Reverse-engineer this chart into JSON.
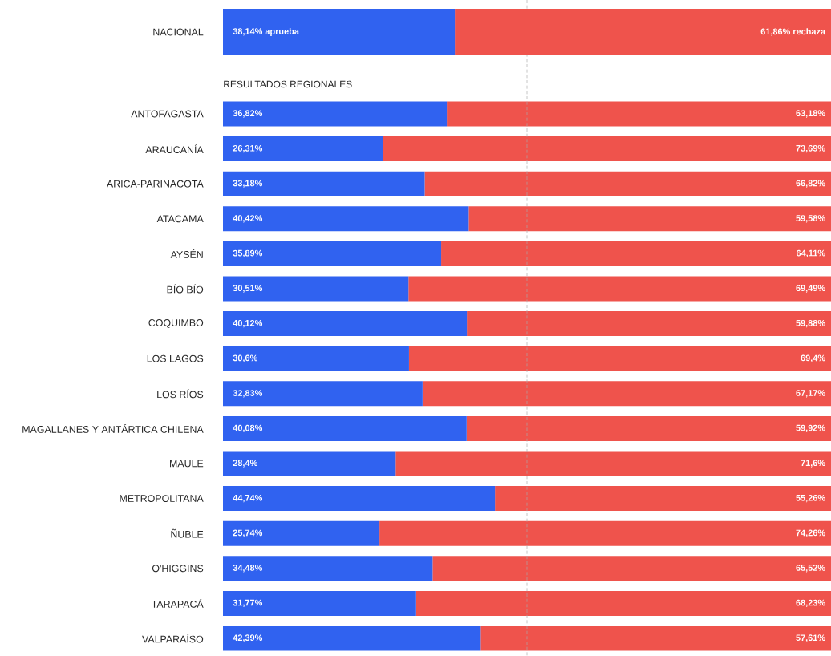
{
  "chart_data": {
    "type": "bar",
    "orientation": "horizontal",
    "stacked": true,
    "categories": [
      "NACIONAL",
      "ANTOFAGASTA",
      "ARAUCANÍA",
      "ARICA-PARINACOTA",
      "ATACAMA",
      "AYSÉN",
      "BÍO BÍO",
      "COQUIMBO",
      "LOS LAGOS",
      "LOS RÍOS",
      "MAGALLANES Y ANTÁRTICA CHILENA",
      "MAULE",
      "METROPOLITANA",
      "ÑUBLE",
      "O'HIGGINS",
      "TARAPACÁ",
      "VALPARAÍSO"
    ],
    "series": [
      {
        "color": "#3062f0",
        "values": [
          38.14,
          36.82,
          26.31,
          33.18,
          40.42,
          35.89,
          30.51,
          40.12,
          30.6,
          32.83,
          40.08,
          28.4,
          44.74,
          25.74,
          34.48,
          31.77,
          42.39
        ],
        "value_labels": [
          "38,14% aprueba",
          "36,82%",
          "26,31%",
          "33,18%",
          "40,42%",
          "35,89%",
          "30,51%",
          "40,12%",
          "30,6%",
          "32,83%",
          "40,08%",
          "28,4%",
          "44,74%",
          "25,74%",
          "34,48%",
          "31,77%",
          "42,39%"
        ]
      },
      {
        "color": "#ef534c",
        "values": [
          61.86,
          63.18,
          73.69,
          66.82,
          59.58,
          64.11,
          69.49,
          59.88,
          69.4,
          67.17,
          59.92,
          71.6,
          55.26,
          74.26,
          65.52,
          68.23,
          57.61
        ],
        "value_labels": [
          "61,86% rechaza",
          "63,18%",
          "73,69%",
          "66,82%",
          "59,58%",
          "64,11%",
          "69,49%",
          "59,88%",
          "69,4%",
          "67,17%",
          "59,92%",
          "71,6%",
          "55,26%",
          "74,26%",
          "65,52%",
          "68,23%",
          "57,61%"
        ]
      }
    ],
    "xlim": [
      0,
      100
    ],
    "tick_labels": "y",
    "ref_lines": [
      {
        "axis": "x",
        "value": 50,
        "color": "#aaaaaa",
        "line_style": "dashed"
      }
    ],
    "annotations": [
      "RESULTADOS REGIONALES"
    ]
  }
}
